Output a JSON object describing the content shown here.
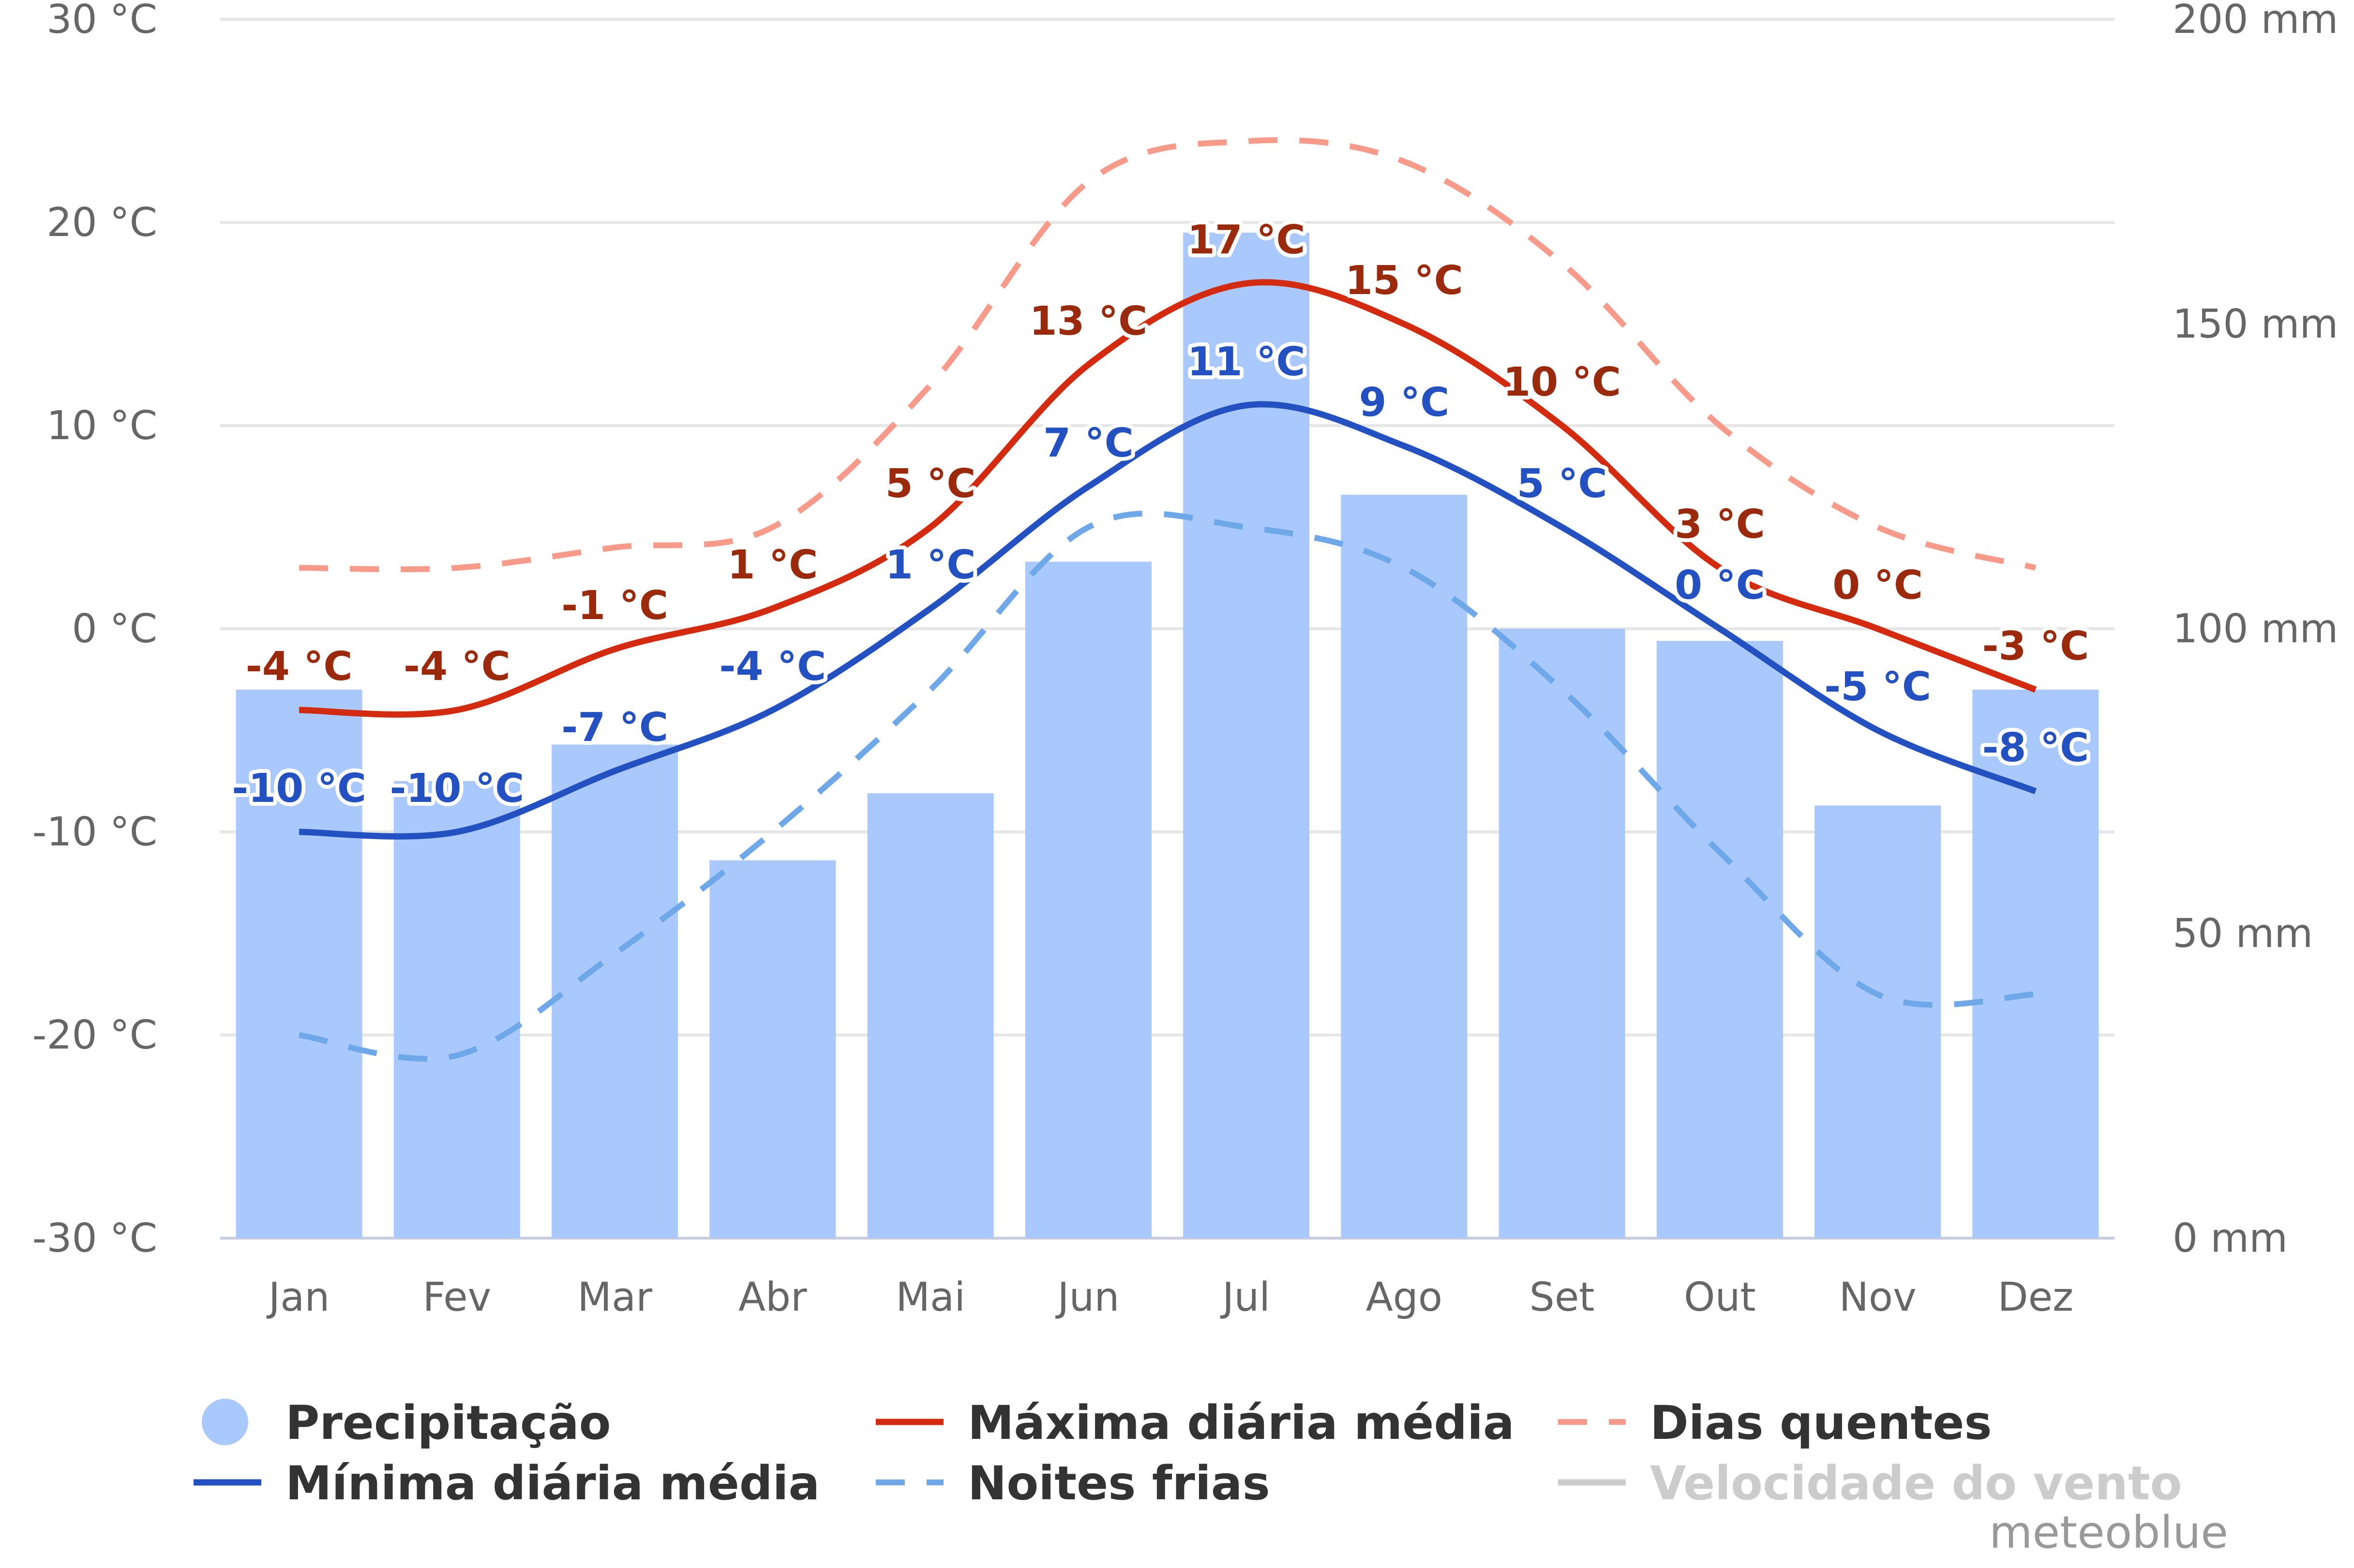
{
  "chart_data": {
    "type": "bar",
    "categories": [
      "Jan",
      "Fev",
      "Mar",
      "Abr",
      "Mai",
      "Jun",
      "Jul",
      "Ago",
      "Set",
      "Out",
      "Nov",
      "Dez"
    ],
    "y_left": {
      "ticks": [
        "30 °C",
        "20 °C",
        "10 °C",
        "0 °C",
        "-10 °C",
        "-20 °C",
        "-30 °C"
      ],
      "range": [
        -30,
        30
      ]
    },
    "y_right": {
      "ticks": [
        "200 mm",
        "150 mm",
        "100 mm",
        "50 mm",
        "0 mm"
      ],
      "range": [
        0,
        200
      ]
    },
    "grid": true,
    "series": [
      {
        "name": "Precipitação",
        "type": "bar",
        "axis": "right",
        "color": "#a9c8fc",
        "values": [
          90,
          75,
          81,
          62,
          73,
          111,
          165,
          122,
          100,
          98,
          71,
          90
        ]
      },
      {
        "name": "Máxima diária média",
        "type": "line",
        "axis": "left",
        "color": "#d42a0f",
        "values": [
          -4,
          -4,
          -1,
          1,
          5,
          13,
          17,
          15,
          10,
          3,
          0,
          -3
        ],
        "labels": [
          "-4 °C",
          "-4 °C",
          "-1 °C",
          "1 °C",
          "5 °C",
          "13 °C",
          "17 °C",
          "15 °C",
          "10 °C",
          "3 °C",
          "0 °C",
          "-3 °C"
        ],
        "label_color": "#9b2a0c"
      },
      {
        "name": "Mínima diária média",
        "type": "line",
        "axis": "left",
        "color": "#2451c1",
        "values": [
          -10,
          -10,
          -7,
          -4,
          1,
          7,
          11,
          9,
          5,
          0,
          -5,
          -8
        ],
        "labels": [
          "-10 °C",
          "-10 °C",
          "-7 °C",
          "-4 °C",
          "1 °C",
          "7 °C",
          "11 °C",
          "9 °C",
          "5 °C",
          "0 °C",
          "-5 °C",
          "-8 °C"
        ],
        "label_color": "#2451c1"
      },
      {
        "name": "Dias quentes",
        "type": "line",
        "dash": true,
        "axis": "left",
        "color": "#f89a8a",
        "values": [
          3,
          3,
          4,
          5,
          12,
          22,
          24,
          23,
          18,
          10,
          5,
          3
        ]
      },
      {
        "name": "Noites frias",
        "type": "line",
        "dash": true,
        "axis": "left",
        "color": "#6ea8e8",
        "values": [
          -20,
          -21,
          -16,
          -10,
          -3,
          5,
          5,
          3,
          -3,
          -11,
          -18,
          -18
        ]
      }
    ],
    "legend": {
      "placement": "bottom",
      "items": [
        {
          "label": "Precipitação",
          "symbol": "circle",
          "color": "#a9c8fc",
          "disabled": false
        },
        {
          "label": "Máxima diária média",
          "symbol": "line",
          "color": "#d42a0f",
          "disabled": false
        },
        {
          "label": "Dias quentes",
          "symbol": "dash",
          "color": "#f89a8a",
          "disabled": false
        },
        {
          "label": "Mínima diária média",
          "symbol": "line",
          "color": "#2451c1",
          "disabled": false
        },
        {
          "label": "Noites frias",
          "symbol": "dash",
          "color": "#6ea8e8",
          "disabled": false
        },
        {
          "label": "Velocidade do vento",
          "symbol": "line",
          "color": "#cccccc",
          "disabled": true
        }
      ]
    },
    "credit": "meteoblue"
  }
}
